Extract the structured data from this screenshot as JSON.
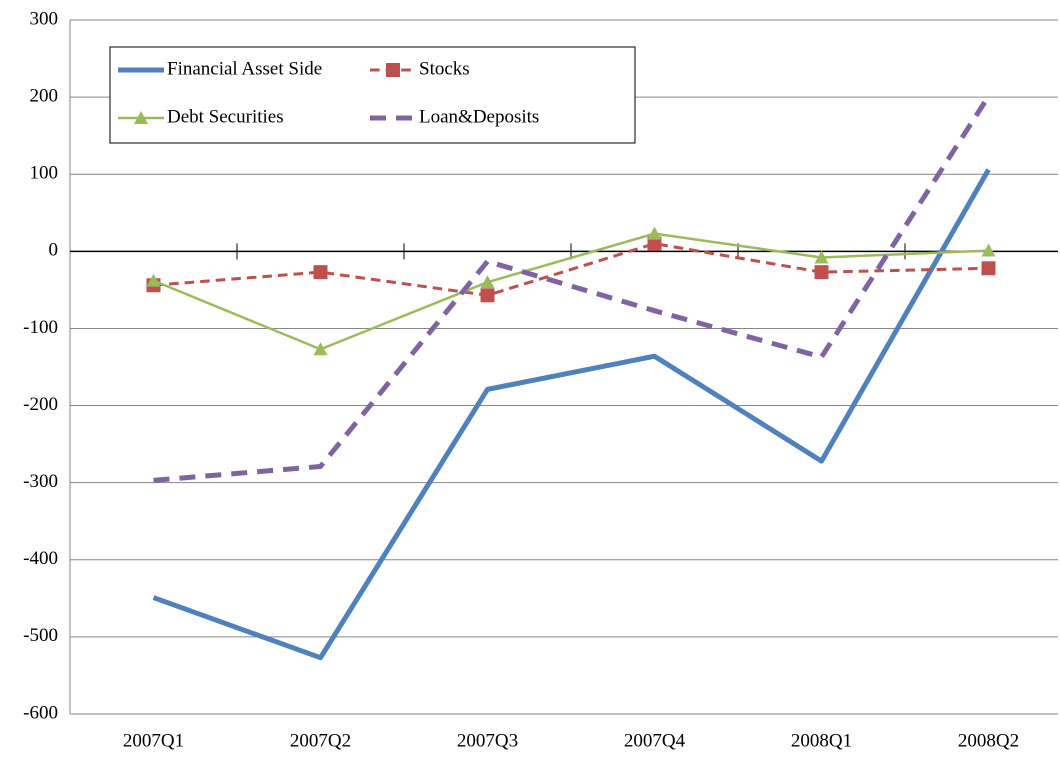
{
  "chart_data": {
    "type": "line",
    "categories": [
      "2007Q1",
      "2007Q2",
      "2007Q3",
      "2007Q4",
      "2008Q1",
      "2008Q2"
    ],
    "series": [
      {
        "name": "Financial Asset Side",
        "color": "#4f81bd",
        "width": 5,
        "dashed": false,
        "marker": "none",
        "values": [
          -449,
          -527,
          -179,
          -136,
          -272,
          106
        ]
      },
      {
        "name": "Stocks",
        "color": "#c0504d",
        "width": 3,
        "dashed": true,
        "marker": "square",
        "values": [
          -44,
          -27,
          -57,
          10,
          -27,
          -22
        ]
      },
      {
        "name": "Debt Securities",
        "color": "#9bbb59",
        "width": 2.5,
        "dashed": false,
        "marker": "triangle",
        "values": [
          -38,
          -127,
          -40,
          23,
          -8,
          1
        ]
      },
      {
        "name": "Loan&Deposits",
        "color": "#8064a2",
        "width": 5,
        "dashed": true,
        "marker": "none",
        "values": [
          -297,
          -279,
          -13,
          -77,
          -137,
          201
        ]
      }
    ],
    "ylim": [
      -600,
      300
    ],
    "yticks": [
      -600,
      -500,
      -400,
      -300,
      -200,
      -100,
      0,
      100,
      200,
      300
    ],
    "grid": true
  }
}
